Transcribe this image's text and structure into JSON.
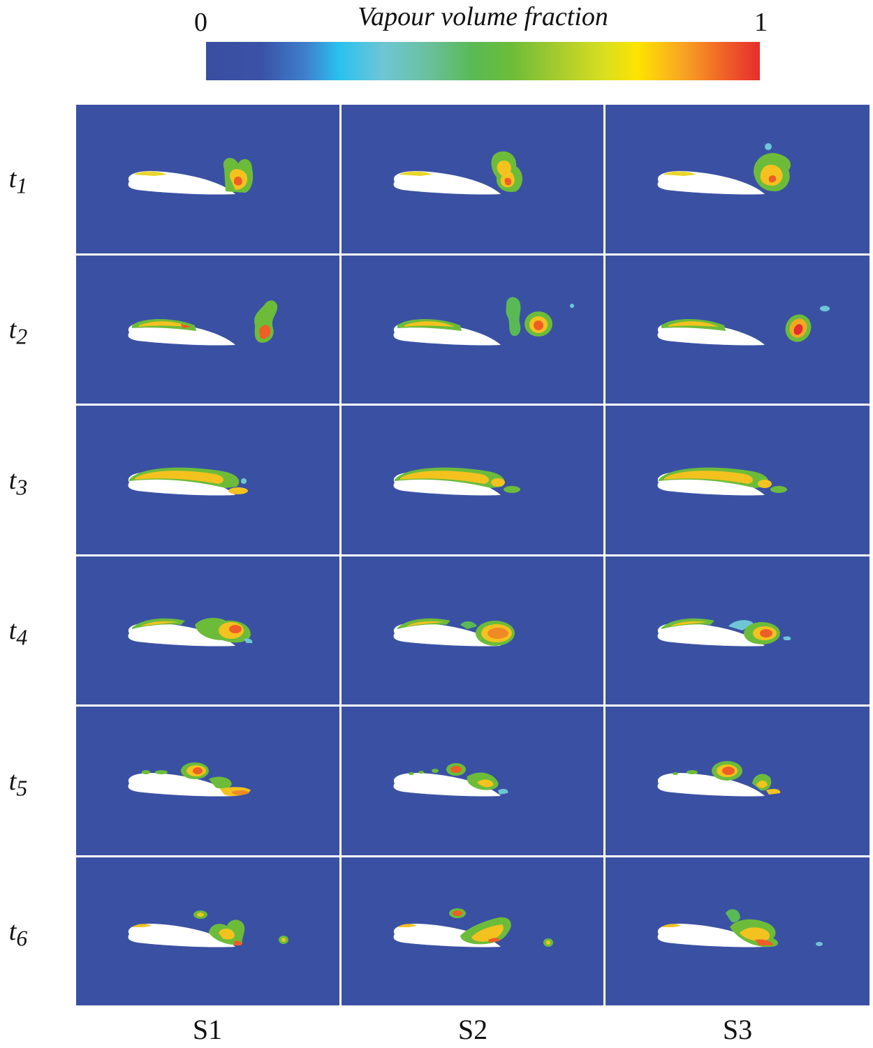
{
  "colorbar": {
    "title": "Vapour volume fraction",
    "min_label": "0",
    "max_label": "1",
    "colors": [
      "#3a4ea0",
      "#29c1ef",
      "#59ba55",
      "#fde400",
      "#e52d2e"
    ]
  },
  "rows": [
    "t1",
    "t2",
    "t3",
    "t4",
    "t5",
    "t6"
  ],
  "columns": [
    "S1",
    "S2",
    "S3"
  ],
  "background_color": "#3a51a3"
}
